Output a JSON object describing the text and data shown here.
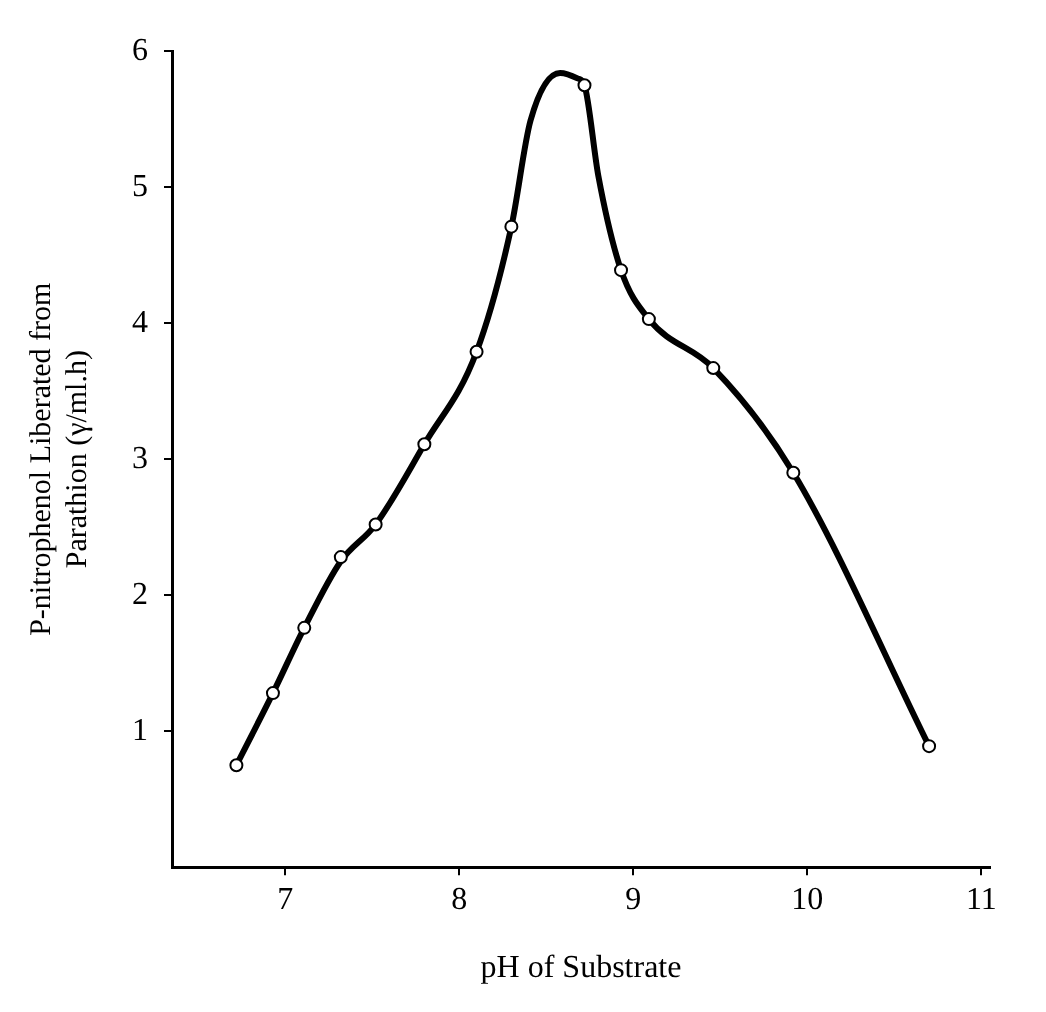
{
  "chart_data": {
    "type": "line",
    "xlabel": "pH of Substrate",
    "ylabel": "P-nitrophenol Liberated from\nParathion (γ/ml.h)",
    "xlim": [
      6.35,
      11.05
    ],
    "xticks": [
      7,
      8,
      9,
      10,
      11
    ],
    "ylim": [
      0,
      6
    ],
    "yticks": [
      1,
      2,
      3,
      4,
      5,
      6
    ],
    "grid": false,
    "legend": false,
    "series": [
      {
        "color": "#000000",
        "marker": "none",
        "line_style": "solid",
        "x": [
          6.72,
          6.93,
          7.11,
          7.32,
          7.52,
          7.8,
          8.1,
          8.3,
          8.41,
          8.58,
          8.68,
          8.72,
          8.8,
          8.93,
          9.09,
          9.46,
          9.92,
          10.7
        ],
        "values": [
          0.75,
          1.28,
          1.76,
          2.25,
          2.52,
          3.11,
          3.79,
          4.71,
          5.49,
          5.84,
          5.8,
          5.75,
          5.08,
          4.39,
          4.03,
          3.67,
          2.9,
          0.89
        ]
      },
      {
        "type": "scatter",
        "color": "#000000",
        "marker": "circle",
        "x": [
          6.72,
          6.93,
          7.11,
          7.32,
          7.52,
          7.8,
          8.1,
          8.3,
          8.72,
          8.93,
          9.09,
          9.46,
          9.92,
          10.7
        ],
        "values": [
          0.75,
          1.28,
          1.76,
          2.28,
          2.52,
          3.11,
          3.79,
          4.71,
          5.75,
          4.39,
          4.03,
          3.67,
          2.9,
          0.89
        ]
      }
    ]
  }
}
